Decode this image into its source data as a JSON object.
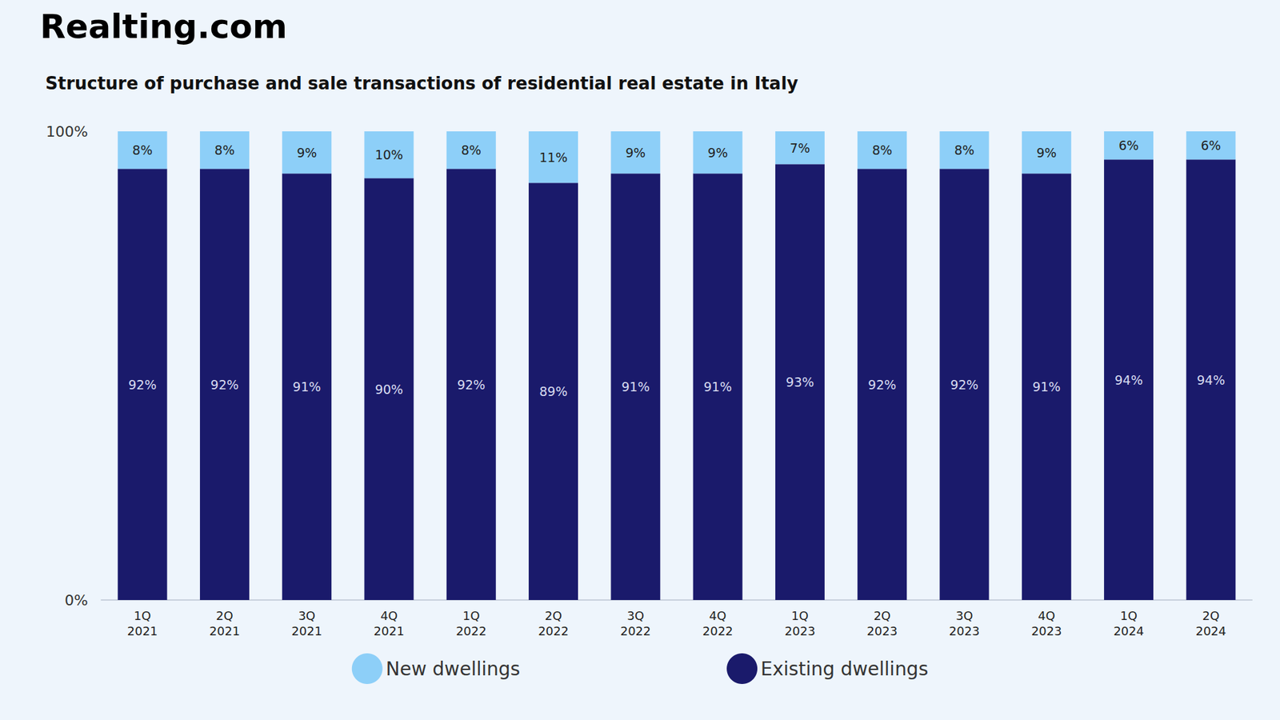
{
  "chart_data": {
    "type": "bar",
    "source": "Realting.com",
    "title": "Structure of purchase and sale transactions of residential real estate in Italy",
    "categories": [
      "1Q\n2021",
      "2Q\n2021",
      "3Q\n2021",
      "4Q\n2021",
      "1Q\n2022",
      "2Q\n2022",
      "3Q\n2022",
      "4Q\n2022",
      "1Q\n2023",
      "2Q\n2023",
      "3Q\n2023",
      "4Q\n2023",
      "1Q\n2024",
      "2Q\n2024"
    ],
    "series": [
      {
        "name": "New dwellings",
        "color": "#8dcff8",
        "values": [
          8,
          8,
          9,
          10,
          8,
          11,
          9,
          9,
          7,
          8,
          8,
          9,
          6,
          6
        ],
        "value_labels": [
          "8%",
          "8%",
          "9%",
          "10%",
          "8%",
          "11%",
          "9%",
          "9%",
          "7%",
          "8%",
          "8%",
          "9%",
          "6%",
          "6%"
        ]
      },
      {
        "name": "Existing dwellings",
        "color": "#1a1a6b",
        "values": [
          92,
          92,
          91,
          90,
          92,
          89,
          91,
          91,
          93,
          92,
          92,
          91,
          94,
          94
        ],
        "value_labels": [
          "92%",
          "92%",
          "91%",
          "90%",
          "92%",
          "89%",
          "91%",
          "91%",
          "93%",
          "92%",
          "92%",
          "91%",
          "94%",
          "94%"
        ]
      }
    ],
    "ylim": [
      0,
      100
    ],
    "yticks": [
      {
        "value": 0,
        "label": "0%"
      },
      {
        "value": 100,
        "label": "100%"
      }
    ],
    "stacked": true,
    "data_labels": true,
    "grid": false,
    "legend": "bottom"
  }
}
